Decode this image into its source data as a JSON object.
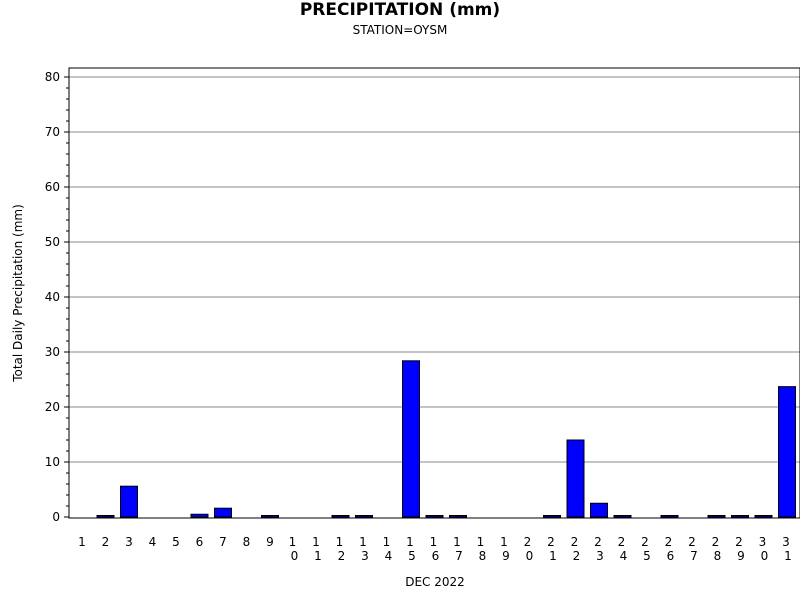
{
  "chart_data": {
    "type": "bar",
    "title": "PRECIPITATION (mm)",
    "subtitle": "STATION=OYSM",
    "xlabel": "DEC 2022",
    "ylabel": "Total Daily Precipitation (mm)",
    "ylim": [
      0,
      81
    ],
    "yticks": [
      0,
      10,
      20,
      30,
      40,
      50,
      60,
      70,
      80
    ],
    "grid": true,
    "bar_color": "#0000ff",
    "categories": [
      "1",
      "2",
      "3",
      "4",
      "5",
      "6",
      "7",
      "8",
      "9",
      "10",
      "11",
      "12",
      "13",
      "14",
      "15",
      "16",
      "17",
      "18",
      "19",
      "20",
      "21",
      "22",
      "23",
      "24",
      "25",
      "26",
      "27",
      "28",
      "29",
      "30",
      "31"
    ],
    "values": [
      0,
      0.1,
      5.6,
      0,
      0,
      0.5,
      1.6,
      0,
      0.1,
      0,
      0,
      0.1,
      0.1,
      0,
      28.4,
      0.1,
      0.1,
      0,
      0,
      0,
      0.1,
      14.0,
      2.5,
      0.1,
      0,
      0.1,
      0,
      0.1,
      0.1,
      0.1,
      23.7
    ]
  }
}
